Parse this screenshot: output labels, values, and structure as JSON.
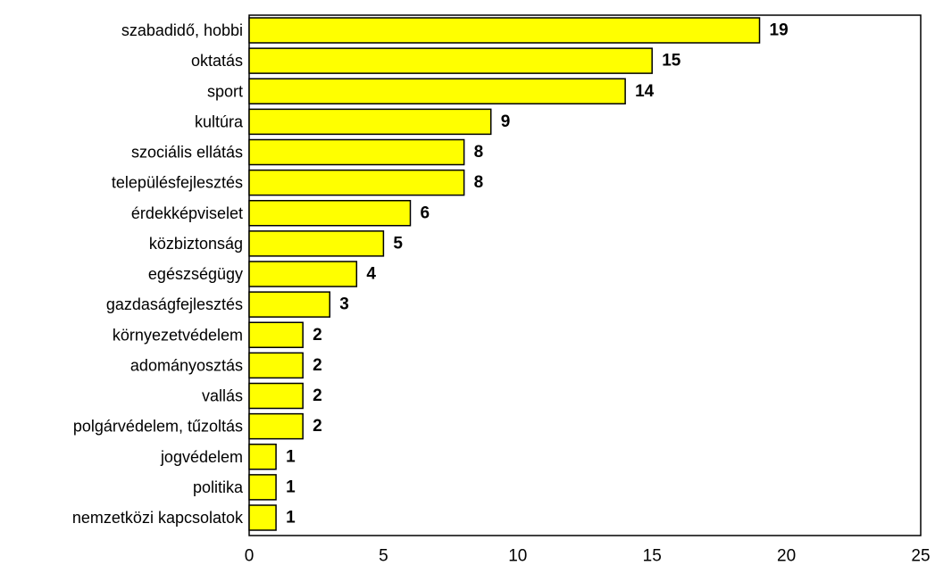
{
  "chart_data": {
    "type": "bar",
    "orientation": "horizontal",
    "categories": [
      "szabadidő, hobbi",
      "oktatás",
      "sport",
      "kultúra",
      "szociális ellátás",
      "településfejlesztés",
      "érdekképviselet",
      "közbiztonság",
      "egészségügy",
      "gazdaságfejlesztés",
      "környezetvédelem",
      "adományosztás",
      "vallás",
      "polgárvédelem, tűzoltás",
      "jogvédelem",
      "politika",
      "nemzetközi kapcsolatok"
    ],
    "values": [
      19,
      15,
      14,
      9,
      8,
      8,
      6,
      5,
      4,
      3,
      2,
      2,
      2,
      2,
      1,
      1,
      1
    ],
    "data_labels": [
      "19",
      "15",
      "14",
      "9",
      "8",
      "8",
      "6",
      "5",
      "4",
      "3",
      "2",
      "2",
      "2",
      "2",
      "1",
      "1",
      "1"
    ],
    "xlim": [
      0,
      25
    ],
    "xticks": [
      "0",
      "5",
      "10",
      "15",
      "20",
      "25"
    ],
    "title": "",
    "xlabel": "",
    "ylabel": "",
    "grid": false,
    "legend": "none",
    "bar_color": "#FFFF00",
    "bar_edge_color": "#000000"
  }
}
